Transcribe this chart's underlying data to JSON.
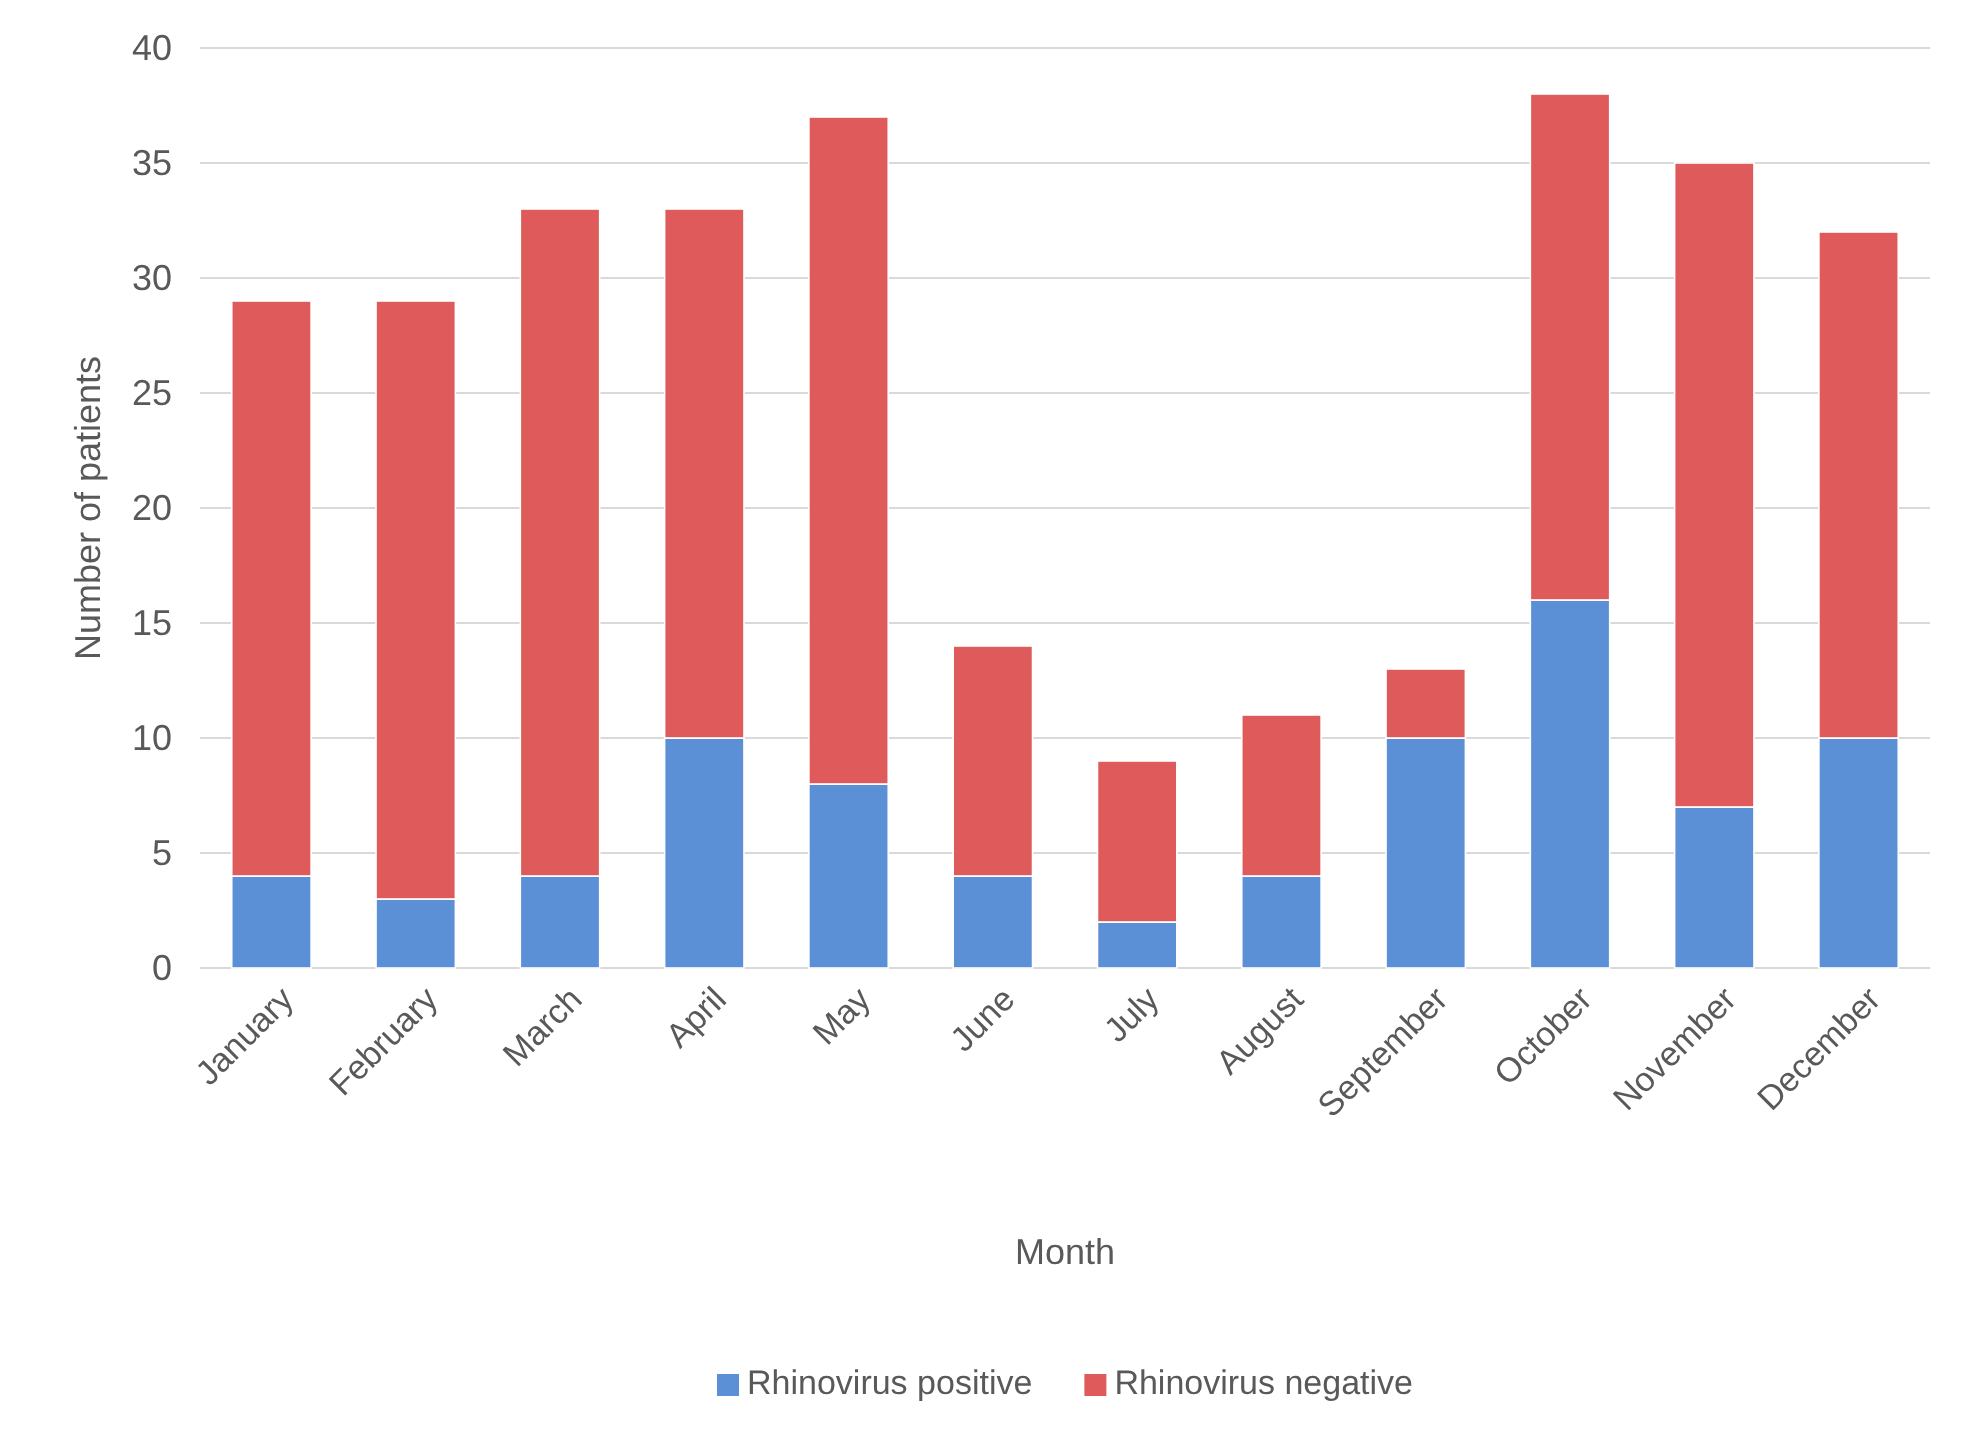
{
  "chart_data": {
    "type": "bar",
    "xlabel": "Month",
    "ylabel": "Number of patients",
    "categories": [
      "January",
      "February",
      "March",
      "April",
      "May",
      "June",
      "July",
      "August",
      "September",
      "October",
      "November",
      "December"
    ],
    "stacked": true,
    "series": [
      {
        "name": "Rhinovirus positive",
        "color": "#5b8fd6",
        "values": [
          4,
          3,
          4,
          10,
          8,
          4,
          2,
          4,
          10,
          16,
          7,
          10
        ]
      },
      {
        "name": "Rhinovirus negative",
        "color": "#df5b5b",
        "values": [
          25,
          26,
          29,
          23,
          29,
          10,
          7,
          7,
          3,
          22,
          28,
          22
        ]
      }
    ],
    "ylim": [
      0,
      40
    ],
    "yticks": [
      0,
      5,
      10,
      15,
      20,
      25,
      30,
      35,
      40
    ],
    "grid": "y",
    "legend": "bottom"
  }
}
